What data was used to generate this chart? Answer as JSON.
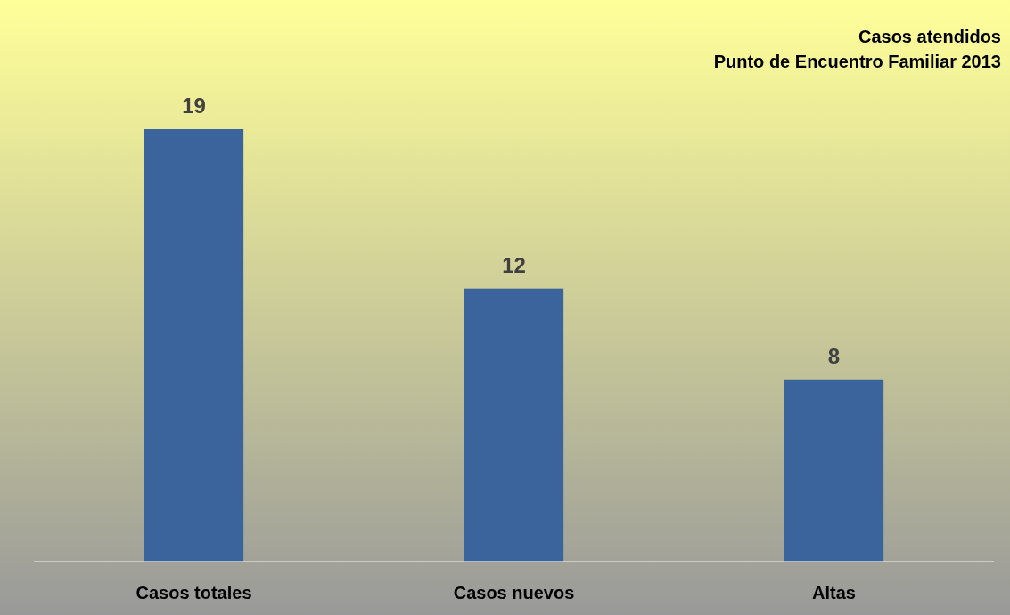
{
  "chart_data": {
    "type": "bar",
    "title": "Casos atendidos",
    "subtitle": "Punto de Encuentro Familiar 2013",
    "categories": [
      "Casos totales",
      "Casos nuevos",
      "Altas"
    ],
    "values": [
      19,
      12,
      8
    ],
    "color": "#3b649c",
    "data_labels": true
  }
}
